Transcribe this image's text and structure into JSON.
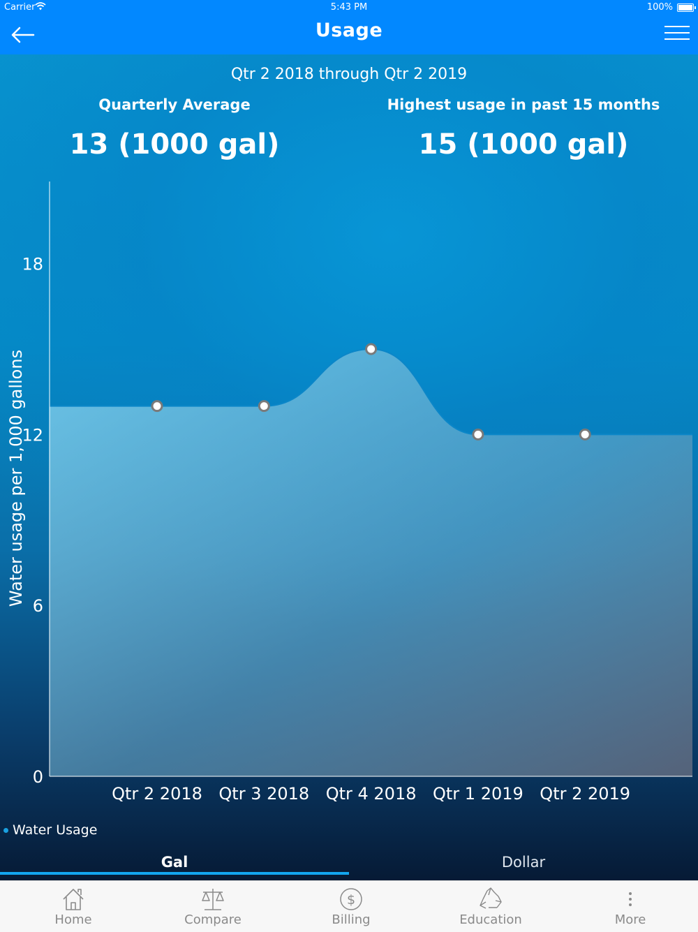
{
  "status_bar": {
    "carrier": "Carrier",
    "time": "5:43 PM",
    "battery": "100%"
  },
  "nav": {
    "title": "Usage",
    "back_icon": "arrow-left-icon",
    "menu_icon": "hamburger-menu-icon"
  },
  "summary": {
    "range": "Qtr 2 2018 through Qtr 2 2019",
    "average_label": "Quarterly Average",
    "average_value": "13 (1000 gal)",
    "highest_label": "Highest usage in past 15 months",
    "highest_value": "15 (1000 gal)"
  },
  "chart_data": {
    "type": "area",
    "categories": [
      "Qtr 2 2018",
      "Qtr 3 2018",
      "Qtr 4 2018",
      "Qtr 1 2019",
      "Qtr 2 2019"
    ],
    "series": [
      {
        "name": "Water Usage",
        "values": [
          13,
          13,
          15,
          12,
          12
        ]
      }
    ],
    "ylabel": "Water usage per 1,000 gallons",
    "yticks": [
      0,
      6,
      12,
      18
    ],
    "ylim": [
      0,
      21
    ],
    "legend_position": "bottom-left",
    "grid": false
  },
  "segments": {
    "gal": "Gal",
    "dollar": "Dollar",
    "selected": "gal"
  },
  "tabs": [
    {
      "label": "Home",
      "icon": "home-icon"
    },
    {
      "label": "Compare",
      "icon": "scale-icon"
    },
    {
      "label": "Billing",
      "icon": "dollar-coin-icon"
    },
    {
      "label": "Education",
      "icon": "recycle-icon"
    },
    {
      "label": "More",
      "icon": "more-vertical-icon"
    }
  ],
  "colors": {
    "accent": "#0288ff",
    "segment_underline": "#13a6ef",
    "tab_inactive": "#8a8a8a"
  }
}
